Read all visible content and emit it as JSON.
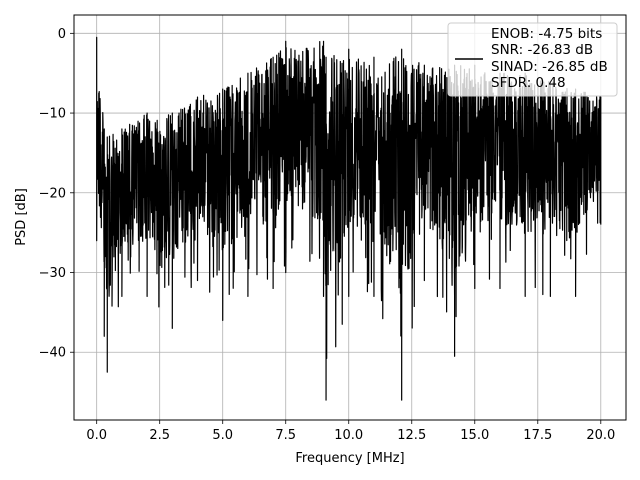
{
  "chart_data": {
    "type": "line",
    "title": "",
    "xlabel": "Frequency [MHz]",
    "ylabel": "PSD [dB]",
    "xlim": [
      -0.9,
      21.0
    ],
    "ylim": [
      -48.5,
      2.3
    ],
    "xticks": [
      0.0,
      2.5,
      5.0,
      7.5,
      10.0,
      12.5,
      15.0,
      17.5,
      20.0
    ],
    "xtick_labels": [
      "0.0",
      "2.5",
      "5.0",
      "7.5",
      "10.0",
      "12.5",
      "15.0",
      "17.5",
      "20.0"
    ],
    "yticks": [
      0,
      -10,
      -20,
      -30,
      -40
    ],
    "ytick_labels": [
      "0",
      "−10",
      "−20",
      "−30",
      "−40"
    ],
    "grid": true,
    "legend_position": "top-right",
    "series_color": "#000000",
    "series": [
      {
        "legend_lines": [
          "ENOB: -4.75 bits",
          "SNR: -26.83 dB",
          "SINAD: -26.85 dB",
          "SFDR: 0.48"
        ],
        "x_range": [
          0.0,
          20.0
        ],
        "envelope": [
          {
            "x": 0.0,
            "upper": -0.5,
            "lower": -26
          },
          {
            "x": 0.3,
            "upper": -12,
            "lower": -38
          },
          {
            "x": 0.42,
            "upper": -13,
            "lower": -42.5
          },
          {
            "x": 1.0,
            "upper": -12,
            "lower": -33
          },
          {
            "x": 2.0,
            "upper": -10,
            "lower": -33
          },
          {
            "x": 3.0,
            "upper": -10,
            "lower": -37
          },
          {
            "x": 4.0,
            "upper": -8,
            "lower": -31
          },
          {
            "x": 5.0,
            "upper": -7,
            "lower": -36
          },
          {
            "x": 6.0,
            "upper": -5,
            "lower": -33
          },
          {
            "x": 7.0,
            "upper": -3,
            "lower": -32
          },
          {
            "x": 7.5,
            "upper": -1,
            "lower": -30
          },
          {
            "x": 9.0,
            "upper": -1,
            "lower": -33
          },
          {
            "x": 9.1,
            "upper": -3,
            "lower": -46
          },
          {
            "x": 10.0,
            "upper": -2,
            "lower": -33
          },
          {
            "x": 11.0,
            "upper": -3,
            "lower": -33
          },
          {
            "x": 12.1,
            "upper": -2,
            "lower": -46
          },
          {
            "x": 13.0,
            "upper": -4,
            "lower": -31
          },
          {
            "x": 14.2,
            "upper": -4,
            "lower": -40.5
          },
          {
            "x": 15.0,
            "upper": -4,
            "lower": -32
          },
          {
            "x": 16.0,
            "upper": -5,
            "lower": -32
          },
          {
            "x": 17.0,
            "upper": -5,
            "lower": -33
          },
          {
            "x": 18.0,
            "upper": -6,
            "lower": -33
          },
          {
            "x": 19.0,
            "upper": -7,
            "lower": -33
          },
          {
            "x": 20.0,
            "upper": -8,
            "lower": -24
          }
        ]
      }
    ]
  }
}
